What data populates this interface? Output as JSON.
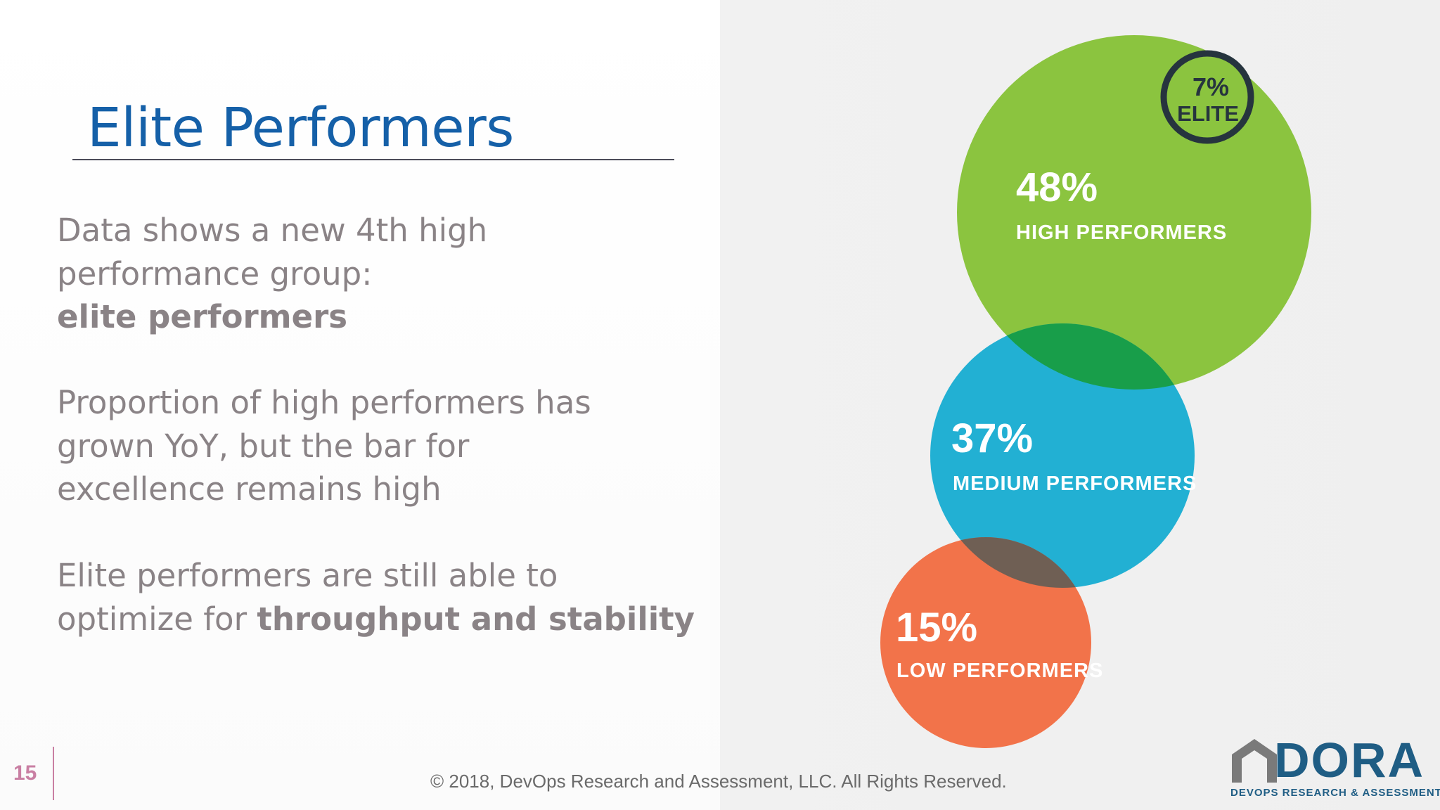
{
  "slide": {
    "title": "Elite Performers",
    "paragraphs": {
      "p1": {
        "line1": "Data shows a new 4th high",
        "line2": "performance group:",
        "line3_bold": "elite performers"
      },
      "p2": {
        "line1": "Proportion of high performers has",
        "line2": "grown YoY, but the bar for",
        "line3": "excellence remains high"
      },
      "p3": {
        "line1": "Elite performers are still able to",
        "line2_prefix": "optimize for ",
        "line2_bold": "throughput and stability"
      }
    }
  },
  "chart_data": {
    "type": "bubble",
    "series": [
      {
        "name": "HIGH PERFORMERS",
        "value": 48,
        "label": "48%",
        "color": "#8bc43f"
      },
      {
        "name": "MEDIUM PERFORMERS",
        "value": 37,
        "label": "37%",
        "color": "#22b0d3"
      },
      {
        "name": "LOW PERFORMERS",
        "value": 15,
        "label": "15%",
        "color": "#f2734a"
      },
      {
        "name": "ELITE",
        "value": 7,
        "label": "7%",
        "color": "#26343e"
      }
    ],
    "overlap_colors": {
      "high_medium": "#189e4a",
      "medium_low": "#6f5f54"
    }
  },
  "footer": {
    "page_number": "15",
    "copyright": "© 2018, DevOps Research and Assessment, LLC. All Rights Reserved."
  },
  "logo": {
    "word": "DORA",
    "subtitle": "DEVOPS RESEARCH & ASSESSMENT",
    "color": "#1f5d84"
  }
}
